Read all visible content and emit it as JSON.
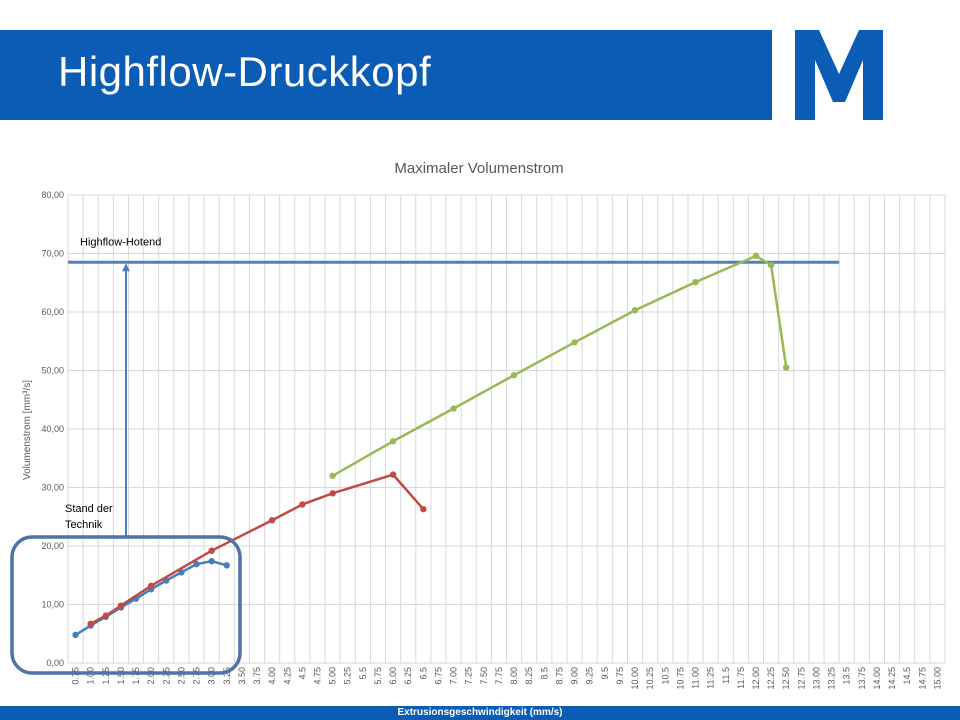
{
  "slide": {
    "title": "Highflow-Druckkopf"
  },
  "colors": {
    "brand_blue": "#0b5cb5",
    "blue_series": "#4a7ebb",
    "red_series": "#be4b48",
    "green_series": "#98b954",
    "hotend_line": "#4f81bd",
    "box_border": "#4f72a8"
  },
  "annotations": {
    "hotend_label": "Highflow-Hotend",
    "state_label_1": "Stand der",
    "state_label_2": "Technik"
  },
  "chart_data": {
    "type": "line",
    "title": "Maximaler Volumenstrom",
    "xlabel": "Extrusionsgeschwindigkeit  (mm/s)",
    "ylabel": "Volumenstrom [mm³/s]",
    "ylim": [
      0,
      80
    ],
    "ytick_labels": [
      "0,00",
      "10,00",
      "20,00",
      "30,00",
      "40,00",
      "50,00",
      "60,00",
      "70,00",
      "80,00"
    ],
    "categories": [
      "0.75",
      "1.00",
      "1.25",
      "1.50",
      "1.75",
      "2.00",
      "2.25",
      "2.50",
      "2.75",
      "3.00",
      "3.25",
      "3.50",
      "3.75",
      "4.00",
      "4.25",
      "4.5",
      "4.75",
      "5.00",
      "5.25",
      "5.5",
      "5.75",
      "6.00",
      "6.25",
      "6.5",
      "6.75",
      "7.00",
      "7.25",
      "7.50",
      "7.75",
      "8.00",
      "8.25",
      "8.5",
      "8.75",
      "9.00",
      "9.25",
      "9.5",
      "9.75",
      "10.00",
      "10.25",
      "10.5",
      "10.75",
      "11.00",
      "11.25",
      "11.5",
      "11.75",
      "12.00",
      "12.25",
      "12.50",
      "12.75",
      "13.00",
      "13.25",
      "13.5",
      "13.75",
      "14.00",
      "14.25",
      "14.5",
      "14.75",
      "15.00"
    ],
    "grid": true,
    "legend": "none",
    "hotend_level": 68.5,
    "hotend_range": [
      "0.75",
      "13.25"
    ],
    "series": [
      {
        "color": "#4a7ebb",
        "points": [
          [
            "0.75",
            4.8
          ],
          [
            "1.00",
            6.4
          ],
          [
            "1.25",
            7.9
          ],
          [
            "1.50",
            9.5
          ],
          [
            "1.75",
            11.0
          ],
          [
            "2.00",
            12.6
          ],
          [
            "2.25",
            14.1
          ],
          [
            "2.50",
            15.5
          ],
          [
            "2.75",
            16.9
          ],
          [
            "3.00",
            17.4
          ],
          [
            "3.25",
            16.7
          ]
        ]
      },
      {
        "color": "#be4b48",
        "points": [
          [
            "1.00",
            6.7
          ],
          [
            "1.25",
            8.1
          ],
          [
            "1.50",
            9.8
          ],
          [
            "2.00",
            13.2
          ],
          [
            "3.00",
            19.2
          ],
          [
            "4.00",
            24.4
          ],
          [
            "4.5",
            27.1
          ],
          [
            "5.00",
            29.0
          ],
          [
            "6.00",
            32.2
          ],
          [
            "6.5",
            26.3
          ]
        ]
      },
      {
        "color": "#98b954",
        "points": [
          [
            "5.00",
            32.0
          ],
          [
            "6.00",
            37.9
          ],
          [
            "7.00",
            43.5
          ],
          [
            "8.00",
            49.2
          ],
          [
            "9.00",
            54.8
          ],
          [
            "10.00",
            60.3
          ],
          [
            "11.00",
            65.1
          ],
          [
            "12.00",
            69.6
          ],
          [
            "12.25",
            68.0
          ],
          [
            "12.50",
            50.5
          ]
        ]
      }
    ]
  }
}
